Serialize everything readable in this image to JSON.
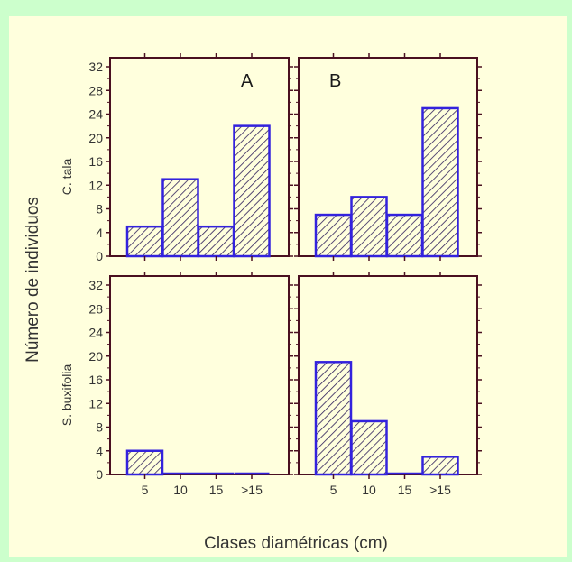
{
  "colors": {
    "page_background": "#ccffcc",
    "plot_background": "#ffffdd",
    "axis": "#4a1020",
    "bar_stroke": "#3322dd",
    "bar_hatch": "#2e1e5a",
    "text": "#333333"
  },
  "chart_data": {
    "type": "bar",
    "layout": "2x2 small multiples",
    "xlabel": "Clases diamétricas (cm)",
    "ylabel": "Número de individuos",
    "categories": [
      "5",
      "10",
      "15",
      ">15"
    ],
    "ylim": [
      0,
      32
    ],
    "yticks": [
      0,
      4,
      8,
      12,
      16,
      20,
      24,
      28,
      32
    ],
    "row_labels": [
      "C. tala",
      "S. buxifolia"
    ],
    "column_labels": [
      "A",
      "B"
    ],
    "bar_fill": "diagonal hatch",
    "panels": [
      {
        "row": "C. tala",
        "column": "A",
        "values": [
          5,
          13,
          5,
          22
        ]
      },
      {
        "row": "C. tala",
        "column": "B",
        "values": [
          7,
          10,
          7,
          25
        ]
      },
      {
        "row": "S. buxifolia",
        "column": "A",
        "values": [
          4,
          0,
          0,
          0
        ]
      },
      {
        "row": "S. buxifolia",
        "column": "B",
        "values": [
          19,
          9,
          0,
          3
        ]
      }
    ]
  }
}
